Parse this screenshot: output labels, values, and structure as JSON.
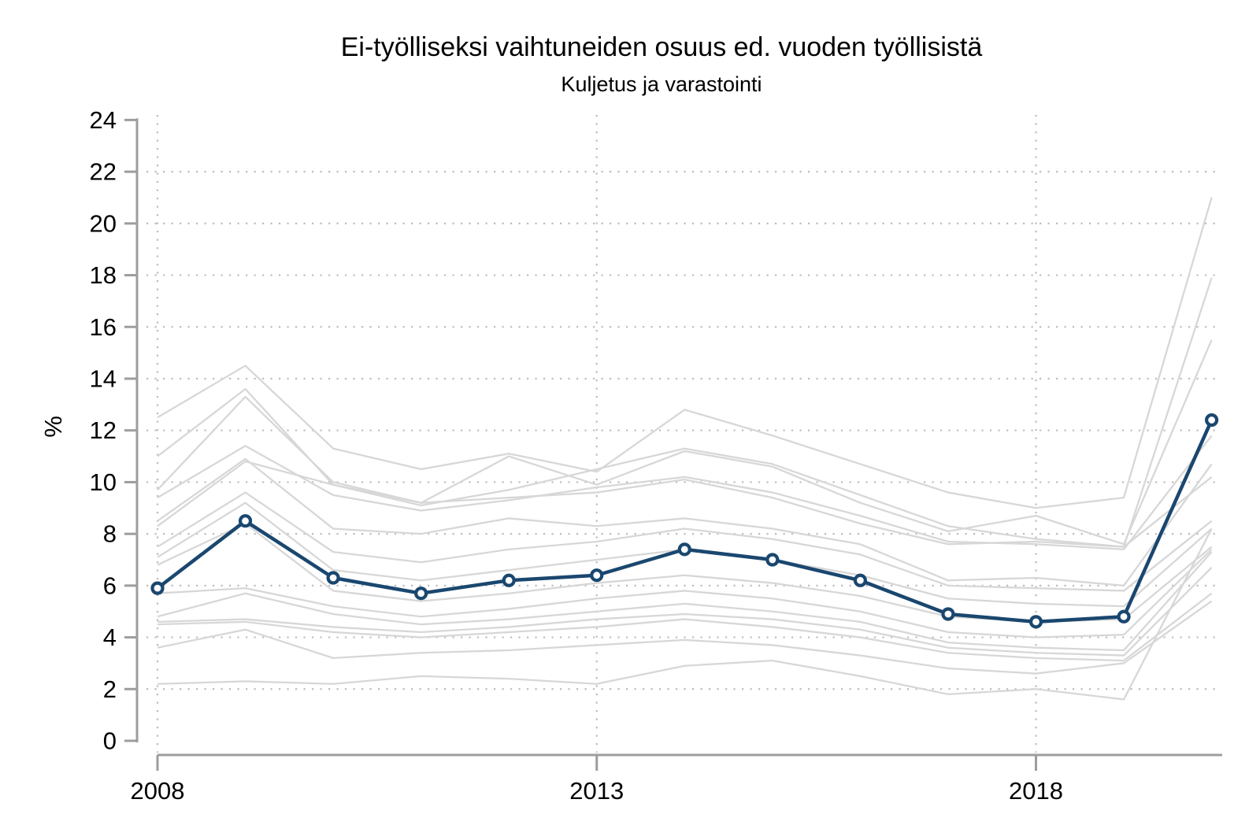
{
  "title": "Ei-työlliseksi vaihtuneiden osuus ed. vuoden työllisistä",
  "subtitle": "Kuljetus ja varastointi",
  "chart_data": {
    "type": "line",
    "x": [
      2008,
      2009,
      2010,
      2011,
      2012,
      2013,
      2014,
      2015,
      2016,
      2017,
      2018,
      2019,
      2020
    ],
    "x_ticks": [
      2008,
      2013,
      2018
    ],
    "x_tick_labels": [
      "2008",
      "2013",
      "2018"
    ],
    "y_ticks": [
      0,
      2,
      4,
      6,
      8,
      10,
      12,
      14,
      16,
      18,
      20,
      22,
      24
    ],
    "ylim": [
      0,
      24
    ],
    "ylabel": "%",
    "grid": {
      "style": "dotted",
      "horizontal_at": [
        2,
        4,
        6,
        8,
        10,
        12,
        14,
        16,
        18,
        20,
        22
      ],
      "vertical_at": [
        2008,
        2013,
        2018
      ]
    },
    "legend": "none",
    "highlight_series": {
      "name": "Kuljetus ja varastointi",
      "marker": "open-circle",
      "values": [
        5.9,
        8.5,
        6.3,
        5.7,
        6.2,
        6.4,
        7.4,
        7.0,
        6.2,
        4.9,
        4.6,
        4.8,
        12.4
      ]
    },
    "background_series": {
      "description": "unlabeled comparison lines (other industries)",
      "values": [
        [
          12.5,
          14.5,
          11.3,
          10.5,
          11.1,
          10.4,
          12.8,
          11.8,
          10.7,
          9.6,
          9.0,
          9.4,
          21.0
        ],
        [
          11.0,
          13.6,
          9.9,
          9.1,
          9.7,
          10.5,
          11.3,
          10.7,
          9.5,
          8.3,
          7.8,
          7.5,
          17.9
        ],
        [
          9.7,
          13.3,
          10.0,
          9.2,
          11.0,
          9.9,
          11.2,
          10.6,
          9.2,
          8.1,
          8.7,
          7.6,
          15.5
        ],
        [
          9.4,
          11.4,
          9.5,
          8.9,
          9.3,
          9.8,
          10.2,
          9.6,
          8.7,
          7.7,
          7.6,
          7.4,
          11.8
        ],
        [
          8.5,
          10.9,
          8.2,
          8.0,
          8.6,
          8.3,
          8.6,
          8.2,
          7.6,
          6.2,
          6.3,
          6.0,
          10.7
        ],
        [
          8.3,
          10.8,
          9.9,
          9.2,
          9.4,
          9.6,
          10.1,
          9.4,
          8.4,
          7.6,
          7.7,
          7.5,
          10.2
        ],
        [
          7.5,
          9.6,
          7.3,
          6.9,
          7.4,
          7.7,
          8.2,
          7.8,
          7.2,
          6.0,
          5.9,
          5.8,
          8.5
        ],
        [
          7.1,
          9.2,
          6.6,
          6.2,
          6.6,
          7.0,
          7.4,
          7.0,
          6.4,
          5.5,
          5.3,
          5.2,
          8.2
        ],
        [
          6.8,
          8.4,
          5.8,
          5.4,
          5.7,
          6.1,
          6.4,
          6.1,
          5.6,
          4.8,
          4.6,
          4.7,
          7.5
        ],
        [
          5.7,
          5.9,
          5.2,
          4.8,
          5.1,
          5.5,
          5.8,
          5.5,
          5.0,
          4.2,
          4.0,
          4.1,
          7.4
        ],
        [
          4.8,
          5.7,
          4.9,
          4.5,
          4.7,
          5.0,
          5.3,
          5.0,
          4.6,
          3.8,
          3.6,
          3.5,
          7.3
        ],
        [
          4.6,
          4.7,
          4.4,
          4.2,
          4.4,
          4.7,
          4.9,
          4.7,
          4.3,
          3.6,
          3.4,
          3.3,
          6.7
        ],
        [
          4.5,
          4.6,
          4.2,
          4.0,
          4.2,
          4.4,
          4.7,
          4.4,
          4.0,
          3.4,
          3.2,
          3.1,
          5.7
        ],
        [
          3.6,
          4.3,
          3.2,
          3.4,
          3.5,
          3.7,
          3.9,
          3.7,
          3.3,
          2.8,
          2.6,
          3.0,
          5.4
        ],
        [
          2.2,
          2.3,
          2.2,
          2.5,
          2.4,
          2.2,
          2.9,
          3.1,
          2.5,
          1.8,
          2.0,
          1.6,
          8.2
        ]
      ]
    },
    "colors": {
      "highlight_line": "#1a476f",
      "marker_fill": "#ffffff",
      "background_line": "#d7d7d7",
      "gridline": "#bdbdbd",
      "axis_line": "#9d9d9d",
      "text": "#000000",
      "background": "#ffffff"
    }
  }
}
